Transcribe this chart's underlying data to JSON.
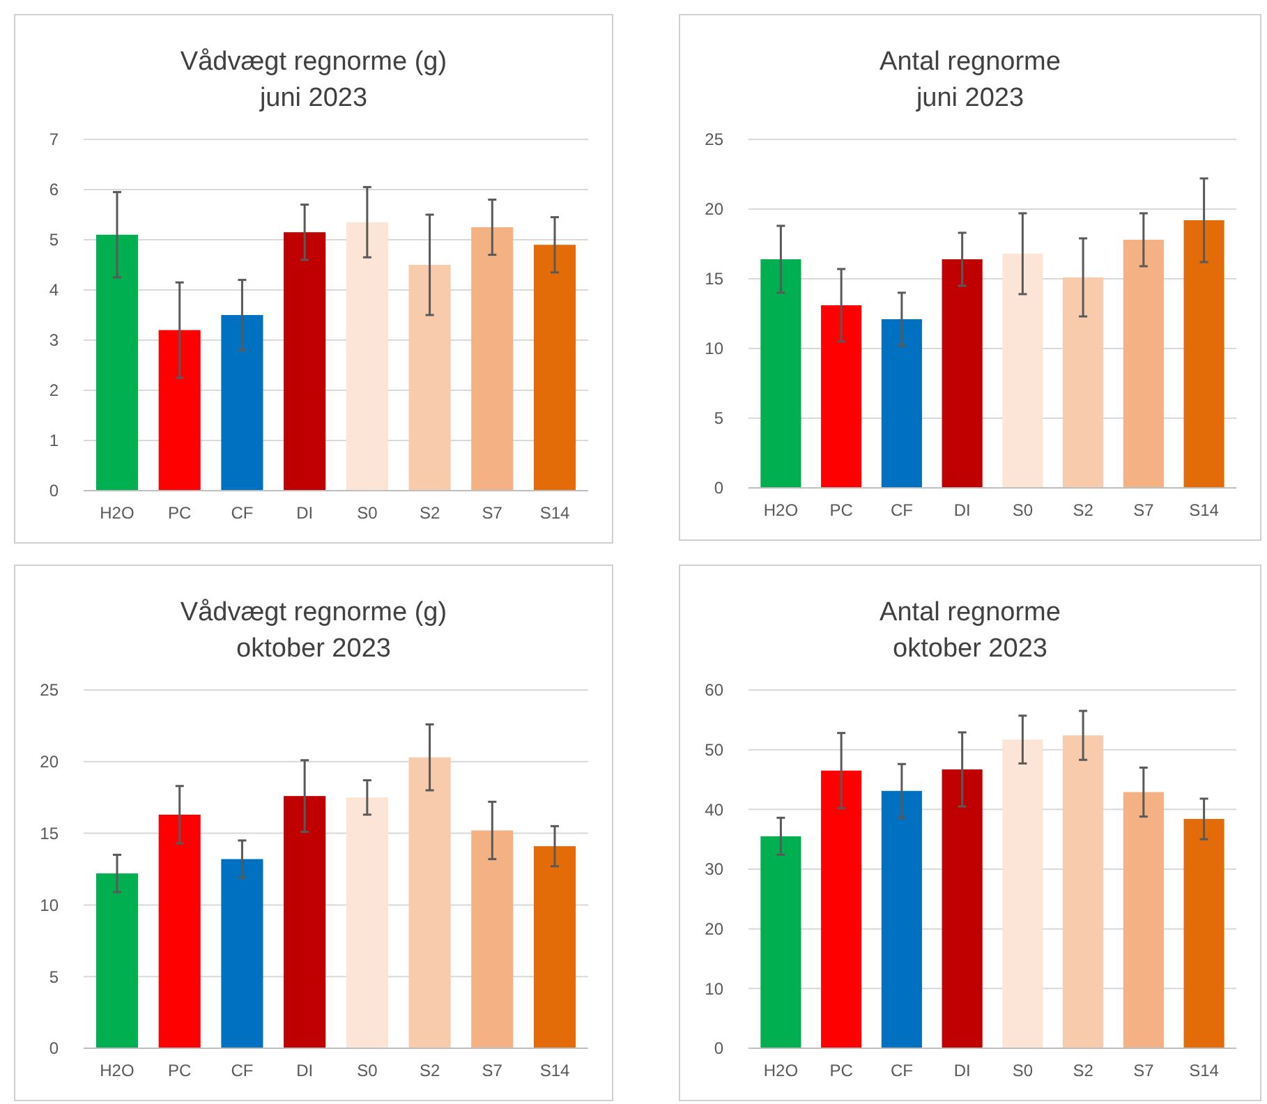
{
  "chart_data": [
    {
      "type": "bar",
      "title": "Vådvægt regnorme (g)",
      "subtitle": "juni 2023",
      "categories": [
        "H2O",
        "PC",
        "CF",
        "DI",
        "S0",
        "S2",
        "S7",
        "S14"
      ],
      "colors": [
        "#00b050",
        "#ff0000",
        "#0070c0",
        "#c00000",
        "#fce4d6",
        "#f8cbad",
        "#f4b183",
        "#e36c09"
      ],
      "values": [
        5.1,
        3.2,
        3.5,
        5.15,
        5.35,
        4.5,
        5.25,
        4.9
      ],
      "errors": [
        0.85,
        0.95,
        0.7,
        0.55,
        0.7,
        1.0,
        0.55,
        0.55
      ],
      "ylim": [
        0,
        7
      ],
      "yticks": [
        0,
        1,
        2,
        3,
        4,
        5,
        6,
        7
      ],
      "grid": "y"
    },
    {
      "type": "bar",
      "title": "Antal regnorme",
      "subtitle": "juni 2023",
      "categories": [
        "H2O",
        "PC",
        "CF",
        "DI",
        "S0",
        "S2",
        "S7",
        "S14"
      ],
      "colors": [
        "#00b050",
        "#ff0000",
        "#0070c0",
        "#c00000",
        "#fce4d6",
        "#f8cbad",
        "#f4b183",
        "#e36c09"
      ],
      "values": [
        16.4,
        13.1,
        12.1,
        16.4,
        16.8,
        15.1,
        17.8,
        19.2
      ],
      "errors": [
        2.4,
        2.6,
        1.9,
        1.9,
        2.9,
        2.8,
        1.9,
        3.0
      ],
      "ylim": [
        0,
        25
      ],
      "yticks": [
        0,
        5,
        10,
        15,
        20,
        25
      ],
      "grid": "y"
    },
    {
      "type": "bar",
      "title": "Vådvægt regnorme (g)",
      "subtitle": "oktober 2023",
      "categories": [
        "H2O",
        "PC",
        "CF",
        "DI",
        "S0",
        "S2",
        "S7",
        "S14"
      ],
      "colors": [
        "#00b050",
        "#ff0000",
        "#0070c0",
        "#c00000",
        "#fce4d6",
        "#f8cbad",
        "#f4b183",
        "#e36c09"
      ],
      "values": [
        12.2,
        16.3,
        13.2,
        17.6,
        17.5,
        20.3,
        15.2,
        14.1
      ],
      "errors": [
        1.3,
        2.0,
        1.3,
        2.5,
        1.2,
        2.3,
        2.0,
        1.4
      ],
      "ylim": [
        0,
        25
      ],
      "yticks": [
        0,
        5,
        10,
        15,
        20,
        25
      ],
      "grid": "y"
    },
    {
      "type": "bar",
      "title": "Antal regnorme",
      "subtitle": "oktober 2023",
      "categories": [
        "H2O",
        "PC",
        "CF",
        "DI",
        "S0",
        "S2",
        "S7",
        "S14"
      ],
      "colors": [
        "#00b050",
        "#ff0000",
        "#0070c0",
        "#c00000",
        "#fce4d6",
        "#f8cbad",
        "#f4b183",
        "#e36c09"
      ],
      "values": [
        35.5,
        46.5,
        43.1,
        46.7,
        51.7,
        52.4,
        42.9,
        38.4
      ],
      "errors": [
        3.1,
        6.3,
        4.5,
        6.2,
        4.0,
        4.1,
        4.1,
        3.4
      ],
      "ylim": [
        0,
        60
      ],
      "yticks": [
        0,
        10,
        20,
        30,
        40,
        50,
        60
      ],
      "grid": "y"
    }
  ]
}
